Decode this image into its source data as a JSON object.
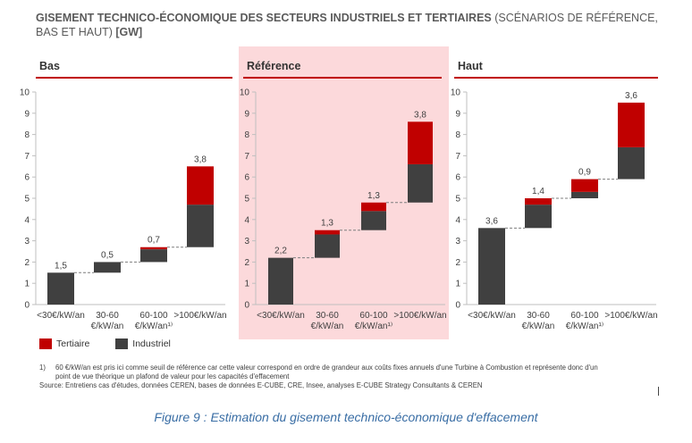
{
  "title": {
    "bold": "GISEMENT TECHNICO-ÉCONOMIQUE DES SECTEURS INDUSTRIELS ET TERTIAIRES",
    "normal": " (SCÉNARIOS DE RÉFÉRENCE, BAS ET HAUT) ",
    "unit": "[GW]"
  },
  "colors": {
    "tertiaire": "#c00000",
    "industriel": "#404040",
    "highlight": "#fcd9db"
  },
  "chart_data": [
    {
      "type": "waterfall",
      "title": "Bas",
      "ylim": [
        0,
        10
      ],
      "yticks": [
        "0",
        "1",
        "2",
        "3",
        "4",
        "5",
        "6",
        "7",
        "8",
        "9",
        "10"
      ],
      "categories": [
        [
          "<30€/kW/an"
        ],
        [
          "30-60",
          "€/kW/an"
        ],
        [
          "60-100",
          "€/kW/an¹⁾"
        ],
        [
          ">100€/kW/an"
        ]
      ],
      "industriel": [
        1.5,
        0.5,
        0.6,
        2.0
      ],
      "tertiaire": [
        0.0,
        0.0,
        0.1,
        1.8
      ],
      "totals": [
        "1,5",
        "0,5",
        "0,7",
        "3,8"
      ]
    },
    {
      "type": "waterfall",
      "title": "Référence",
      "ylim": [
        0,
        10
      ],
      "yticks": [
        "0",
        "1",
        "2",
        "3",
        "4",
        "5",
        "6",
        "7",
        "8",
        "9",
        "10"
      ],
      "categories": [
        [
          "<30€/kW/an"
        ],
        [
          "30-60",
          "€/kW/an"
        ],
        [
          "60-100",
          "€/kW/an¹⁾"
        ],
        [
          ">100€/kW/an"
        ]
      ],
      "industriel": [
        2.2,
        1.1,
        0.9,
        1.8
      ],
      "tertiaire": [
        0.0,
        0.2,
        0.4,
        2.0
      ],
      "totals": [
        "2,2",
        "1,3",
        "1,3",
        "3,8"
      ]
    },
    {
      "type": "waterfall",
      "title": "Haut",
      "ylim": [
        0,
        10
      ],
      "yticks": [
        "0",
        "1",
        "2",
        "3",
        "4",
        "5",
        "6",
        "7",
        "8",
        "9",
        "10"
      ],
      "categories": [
        [
          "<30€/kW/an"
        ],
        [
          "30-60",
          "€/kW/an"
        ],
        [
          "60-100",
          "€/kW/an¹⁾"
        ],
        [
          ">100€/kW/an"
        ]
      ],
      "industriel": [
        3.6,
        1.1,
        0.3,
        1.5
      ],
      "tertiaire": [
        0.0,
        0.3,
        0.6,
        2.1
      ],
      "totals": [
        "3,6",
        "1,4",
        "0,9",
        "3,6"
      ]
    }
  ],
  "legend": {
    "tertiaire": "Tertiaire",
    "industriel": "Industriel"
  },
  "footnote": {
    "number": "1)",
    "line1": "60 €/kW/an est pris ici comme seuil de référence car cette valeur correspond en ordre de grandeur aux coûts fixes annuels d'une Turbine à Combustion et représente donc d'un",
    "line2": "point de vue théorique un plafond de valeur pour les capacités d'effacement",
    "source": "Source: Entretiens cas d'études, données CEREN, bases de données E-CUBE, CRE, Insee, analyses E-CUBE Strategy Consultants & CEREN"
  },
  "caption": "Figure 9 : Estimation du gisement technico-économique d'effacement"
}
